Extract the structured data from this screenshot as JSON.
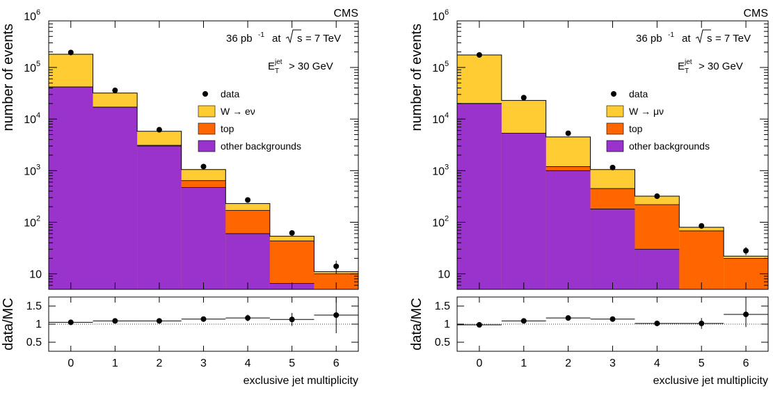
{
  "chart_data": [
    {
      "type": "bar",
      "stacked": true,
      "log_scale_main": true,
      "experiment_label": "CMS",
      "lumi_text": {
        "lumi": "36 pb",
        "lumi_exp": "-1",
        "energy": "= 7 TeV"
      },
      "cut_text": {
        "pre": "E",
        "sub": "T",
        "sup": "jet",
        "post": "> 30 GeV"
      },
      "xlabel": "exclusive jet multiplicity",
      "ylabel": "number of events",
      "ratio_ylabel": "data/MC",
      "categories": [
        "0",
        "1",
        "2",
        "3",
        "4",
        "5",
        "6"
      ],
      "ylim": [
        5,
        800000
      ],
      "ratio_ylim": [
        0.25,
        1.75
      ],
      "y_ticks": [
        {
          "v": 10,
          "label": "10",
          "exp": ""
        },
        {
          "v": 100,
          "label": "10",
          "exp": "2"
        },
        {
          "v": 1000,
          "label": "10",
          "exp": "3"
        },
        {
          "v": 10000,
          "label": "10",
          "exp": "4"
        },
        {
          "v": 100000,
          "label": "10",
          "exp": "5"
        },
        {
          "v": 1000000,
          "label": "10",
          "exp": "6"
        }
      ],
      "ratio_ticks": [
        {
          "v": 0.5,
          "label": "0.5"
        },
        {
          "v": 1,
          "label": "1"
        },
        {
          "v": 1.5,
          "label": "1.5"
        }
      ],
      "series": [
        {
          "name": "other backgrounds",
          "color": "#9933cc",
          "values": [
            42000,
            17000,
            3000,
            470,
            60,
            6.5,
            0
          ]
        },
        {
          "name": "top",
          "color": "#ff6600",
          "values": [
            0,
            0,
            100,
            170,
            110,
            37,
            10
          ]
        },
        {
          "name": "W → eν",
          "color": "#ffcc33",
          "values": [
            138000,
            15000,
            2700,
            410,
            60,
            10,
            1
          ]
        }
      ],
      "data": {
        "name": "data",
        "values": [
          195000,
          36000,
          6200,
          1200,
          270,
          62,
          14
        ],
        "err_lo": [
          0,
          0,
          0,
          0,
          0,
          0,
          4
        ],
        "err_hi": [
          0,
          0,
          0,
          0,
          0,
          0,
          4
        ]
      },
      "ratio": {
        "values": [
          1.05,
          1.09,
          1.09,
          1.14,
          1.17,
          1.13,
          1.25
        ],
        "err": [
          0.02,
          0.02,
          0.03,
          0.05,
          0.09,
          0.18,
          0.5
        ]
      }
    },
    {
      "type": "bar",
      "stacked": true,
      "log_scale_main": true,
      "experiment_label": "CMS",
      "lumi_text": {
        "lumi": "36 pb",
        "lumi_exp": "-1",
        "energy": "= 7 TeV"
      },
      "cut_text": {
        "pre": "E",
        "sub": "T",
        "sup": "jet",
        "post": "> 30 GeV"
      },
      "xlabel": "exclusive jet multiplicity",
      "ylabel": "number of events",
      "ratio_ylabel": "data/MC",
      "categories": [
        "0",
        "1",
        "2",
        "3",
        "4",
        "5",
        "6"
      ],
      "ylim": [
        5,
        800000
      ],
      "ratio_ylim": [
        0.25,
        1.75
      ],
      "y_ticks": [
        {
          "v": 10,
          "label": "10",
          "exp": ""
        },
        {
          "v": 100,
          "label": "10",
          "exp": "2"
        },
        {
          "v": 1000,
          "label": "10",
          "exp": "3"
        },
        {
          "v": 10000,
          "label": "10",
          "exp": "4"
        },
        {
          "v": 100000,
          "label": "10",
          "exp": "5"
        },
        {
          "v": 1000000,
          "label": "10",
          "exp": "6"
        }
      ],
      "ratio_ticks": [
        {
          "v": 0.5,
          "label": "0.5"
        },
        {
          "v": 1,
          "label": "1"
        },
        {
          "v": 1.5,
          "label": "1.5"
        }
      ],
      "series": [
        {
          "name": "other backgrounds",
          "color": "#9933cc",
          "values": [
            20000,
            5300,
            1000,
            180,
            30,
            0,
            0
          ]
        },
        {
          "name": "top",
          "color": "#ff6600",
          "values": [
            0,
            0,
            200,
            270,
            190,
            68,
            20
          ]
        },
        {
          "name": "W → μν",
          "color": "#ffcc33",
          "values": [
            155000,
            17700,
            3300,
            600,
            100,
            12,
            2
          ]
        }
      ],
      "data": {
        "name": "data",
        "values": [
          175000,
          26000,
          5300,
          1150,
          320,
          85,
          28
        ],
        "err_lo": [
          0,
          0,
          0,
          0,
          0,
          0,
          5
        ],
        "err_hi": [
          0,
          0,
          0,
          0,
          0,
          0,
          5
        ]
      },
      "ratio": {
        "values": [
          0.98,
          1.09,
          1.17,
          1.14,
          1.02,
          1.02,
          1.27
        ],
        "err": [
          0.02,
          0.02,
          0.03,
          0.05,
          0.08,
          0.15,
          0.35
        ]
      }
    }
  ]
}
